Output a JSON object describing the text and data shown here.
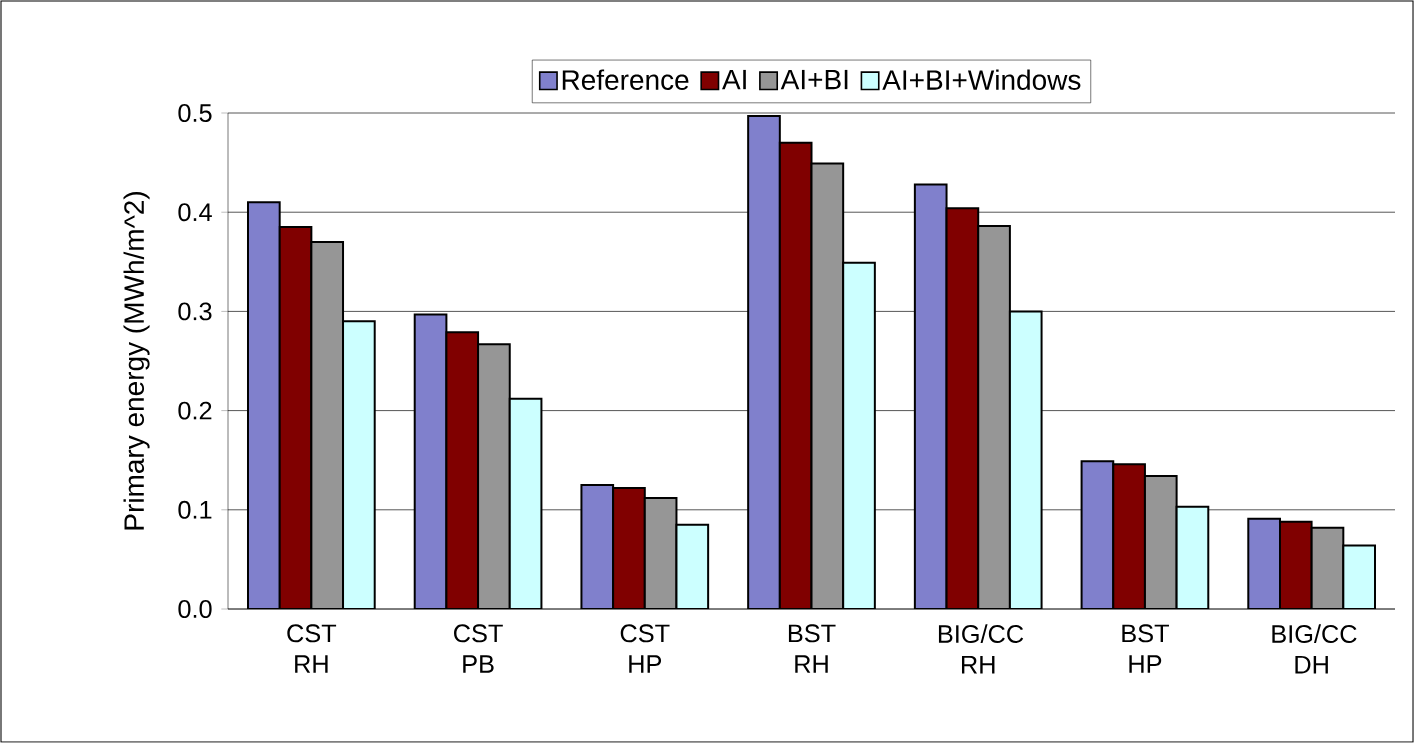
{
  "chart_data": {
    "type": "bar",
    "ylabel": "Primary energy (MWh/m^2)",
    "categories": [
      "CST RH",
      "CST PB",
      "CST HP",
      "BST RH",
      "BIG/CC RH",
      "BST HP",
      "BIG/CC DH"
    ],
    "series": [
      {
        "name": "Reference",
        "color": "#8080cc",
        "values": [
          0.41,
          0.297,
          0.125,
          0.497,
          0.428,
          0.149,
          0.091
        ]
      },
      {
        "name": "AI",
        "color": "#800000",
        "values": [
          0.385,
          0.279,
          0.122,
          0.47,
          0.404,
          0.146,
          0.088
        ]
      },
      {
        "name": "AI+BI",
        "color": "#969696",
        "values": [
          0.37,
          0.267,
          0.112,
          0.449,
          0.386,
          0.134,
          0.082
        ]
      },
      {
        "name": "AI+BI+Windows",
        "color": "#ccffff",
        "values": [
          0.29,
          0.212,
          0.085,
          0.349,
          0.3,
          0.103,
          0.064
        ]
      }
    ],
    "ylim": [
      0,
      0.5
    ],
    "yticks": [
      {
        "value": 0,
        "label": "0.0"
      },
      0.1,
      0.2,
      0.3,
      0.4,
      0.5
    ],
    "grid": "y",
    "legend": "top"
  }
}
